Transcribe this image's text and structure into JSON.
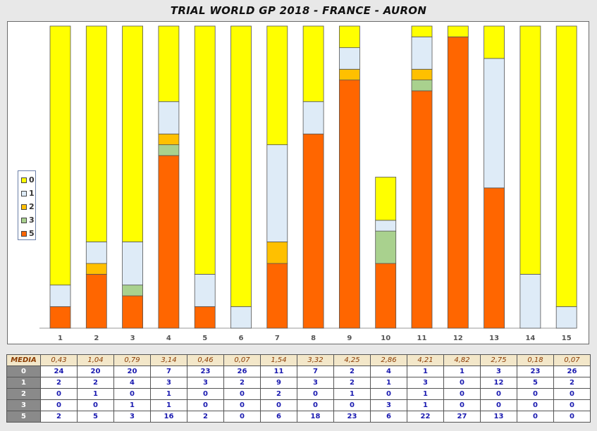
{
  "title": "TRIAL WORLD GP 2018 - FRANCE - AURON",
  "chart_data": {
    "type": "bar",
    "stacked": true,
    "categories": [
      "1",
      "2",
      "3",
      "4",
      "5",
      "6",
      "7",
      "8",
      "9",
      "10",
      "11",
      "12",
      "13",
      "14",
      "15"
    ],
    "series": [
      {
        "name": "5",
        "color": "#ff6600",
        "values": [
          2,
          5,
          3,
          16,
          2,
          0,
          6,
          18,
          23,
          6,
          22,
          27,
          13,
          0,
          0
        ]
      },
      {
        "name": "3",
        "color": "#a9d18e",
        "values": [
          0,
          0,
          1,
          1,
          0,
          0,
          0,
          0,
          0,
          3,
          1,
          0,
          0,
          0,
          0
        ]
      },
      {
        "name": "2",
        "color": "#ffc000",
        "values": [
          0,
          1,
          0,
          1,
          0,
          0,
          2,
          0,
          1,
          0,
          1,
          0,
          0,
          0,
          0
        ]
      },
      {
        "name": "1",
        "color": "#deebf7",
        "values": [
          2,
          2,
          4,
          3,
          3,
          2,
          9,
          3,
          2,
          1,
          3,
          0,
          12,
          5,
          2
        ]
      },
      {
        "name": "0",
        "color": "#ffff00",
        "values": [
          24,
          20,
          20,
          7,
          23,
          26,
          11,
          7,
          2,
          4,
          1,
          1,
          3,
          23,
          26
        ]
      }
    ],
    "legend": [
      "0",
      "1",
      "2",
      "3",
      "5"
    ],
    "legend_position": "left",
    "grid": false
  },
  "table": {
    "media_label": "MEDIA",
    "media": [
      "0,43",
      "1,04",
      "0,79",
      "3,14",
      "0,46",
      "0,07",
      "1,54",
      "3,32",
      "4,25",
      "2,86",
      "4,21",
      "4,82",
      "2,75",
      "0,18",
      "0,07"
    ],
    "rows": [
      {
        "label": "0",
        "values": [
          "24",
          "20",
          "20",
          "7",
          "23",
          "26",
          "11",
          "7",
          "2",
          "4",
          "1",
          "1",
          "3",
          "23",
          "26"
        ]
      },
      {
        "label": "1",
        "values": [
          "2",
          "2",
          "4",
          "3",
          "3",
          "2",
          "9",
          "3",
          "2",
          "1",
          "3",
          "0",
          "12",
          "5",
          "2"
        ]
      },
      {
        "label": "2",
        "values": [
          "0",
          "1",
          "0",
          "1",
          "0",
          "0",
          "2",
          "0",
          "1",
          "0",
          "1",
          "0",
          "0",
          "0",
          "0"
        ]
      },
      {
        "label": "3",
        "values": [
          "0",
          "0",
          "1",
          "1",
          "0",
          "0",
          "0",
          "0",
          "0",
          "3",
          "1",
          "0",
          "0",
          "0",
          "0"
        ]
      },
      {
        "label": "5",
        "values": [
          "2",
          "5",
          "3",
          "16",
          "2",
          "0",
          "6",
          "18",
          "23",
          "6",
          "22",
          "27",
          "13",
          "0",
          "0"
        ]
      }
    ]
  }
}
